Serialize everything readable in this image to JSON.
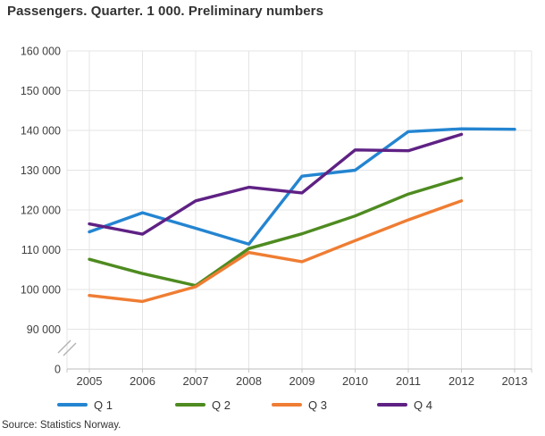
{
  "title": "Passengers. Quarter. 1 000. Preliminary numbers",
  "source": "Source: Statistics Norway.",
  "chart_data": {
    "type": "line",
    "title": "Passengers. Quarter. 1 000. Preliminary numbers",
    "xlabel": "",
    "ylabel": "",
    "x": [
      2005,
      2006,
      2007,
      2008,
      2009,
      2010,
      2011,
      2012,
      2013
    ],
    "series": [
      {
        "name": "Q 1",
        "color": "#2485d1",
        "values": [
          114500,
          119300,
          115400,
          111400,
          128500,
          130000,
          139700,
          140400,
          140300
        ]
      },
      {
        "name": "Q 2",
        "color": "#4e8b20",
        "values": [
          107600,
          104000,
          101000,
          110300,
          114000,
          118500,
          124000,
          128000,
          null
        ]
      },
      {
        "name": "Q 3",
        "color": "#ef7d33",
        "values": [
          98500,
          97000,
          100700,
          109300,
          107000,
          112300,
          117500,
          122300,
          null
        ]
      },
      {
        "name": "Q 4",
        "color": "#5f2184",
        "values": [
          116500,
          113900,
          122300,
          125700,
          124300,
          135100,
          134900,
          139000,
          null
        ]
      }
    ],
    "yticks": [
      {
        "value": 160000,
        "label": "160 000"
      },
      {
        "value": 150000,
        "label": "150 000"
      },
      {
        "value": 140000,
        "label": "140 000"
      },
      {
        "value": 130000,
        "label": "130 000"
      },
      {
        "value": 120000,
        "label": "120 000"
      },
      {
        "value": 110000,
        "label": "110 000"
      },
      {
        "value": 100000,
        "label": "100 000"
      },
      {
        "value": 90000,
        "label": "90 000"
      }
    ],
    "zero_tick_label": "0",
    "axis_break": true,
    "ylim": [
      85000,
      160000
    ],
    "grid": true,
    "legend_position": "bottom",
    "legend": [
      "Q 1",
      "Q 2",
      "Q 3",
      "Q 4"
    ]
  },
  "theme": {
    "grid_color": "#e4e4e4",
    "axis_color": "#c9c9c9",
    "label_color": "#404040",
    "break_color": "#b4b4b4"
  }
}
